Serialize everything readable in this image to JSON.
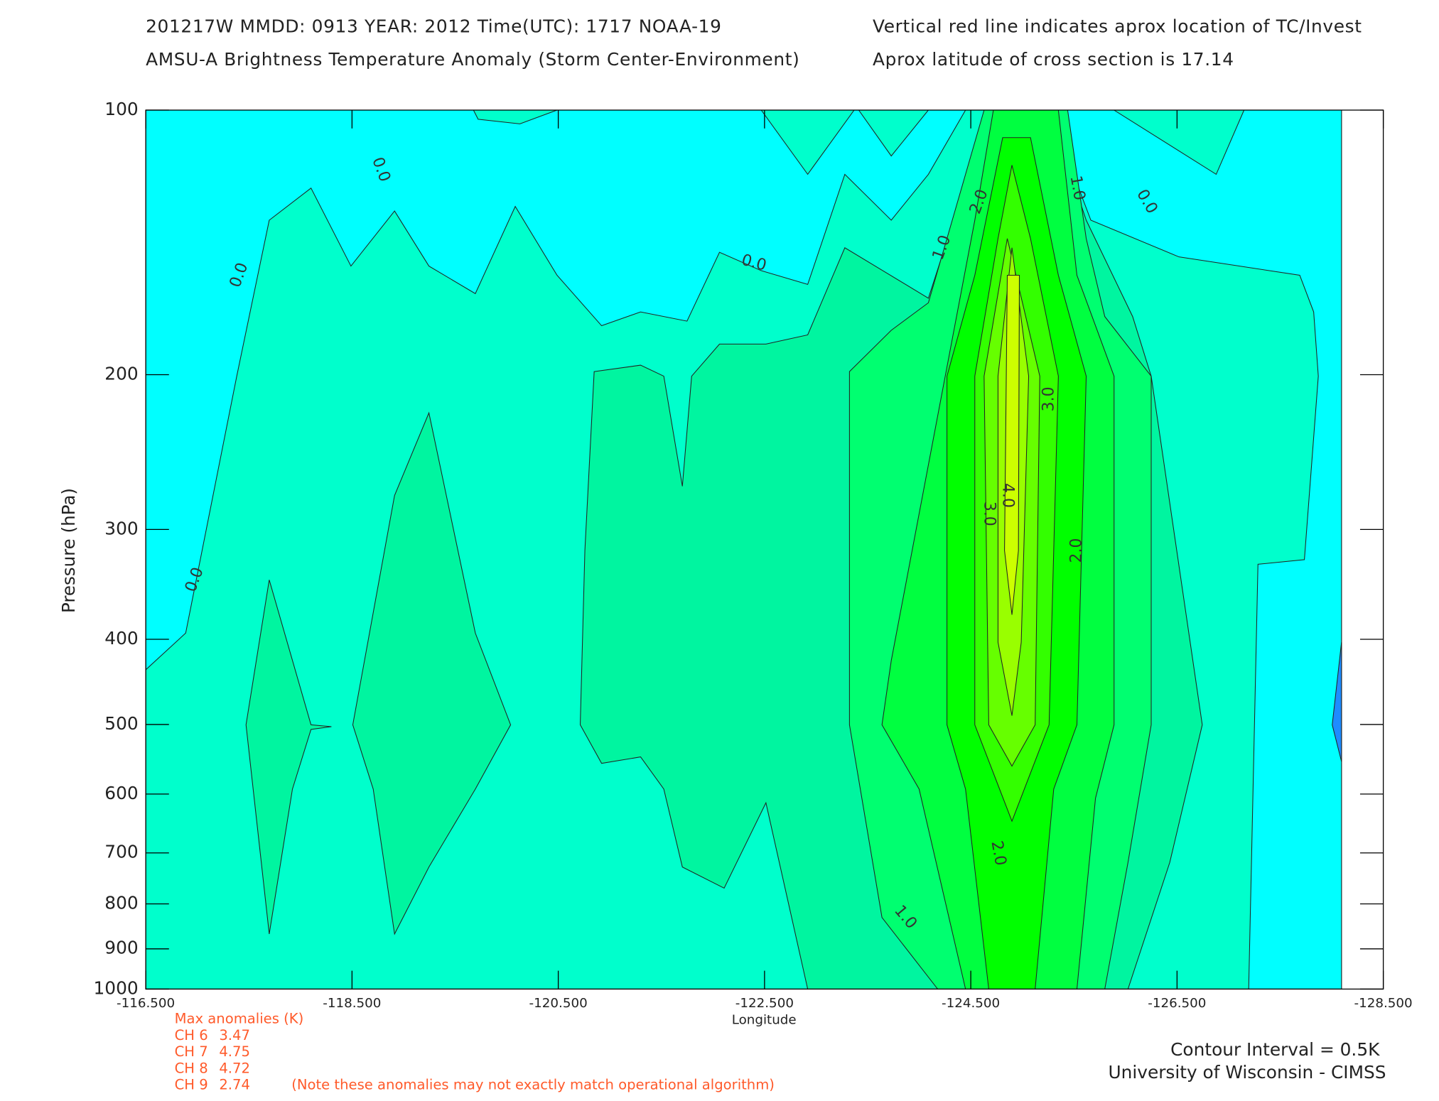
{
  "chart_data": {
    "type": "contour",
    "header": [
      "201217W  MMDD: 0913 YEAR: 2012 Time(UTC): 1717 NOAA-19",
      "AMSU-A Brightness Temperature Anomaly (Storm Center-Environment)",
      "Vertical red line indicates aprox location of TC/Invest",
      "Aprox latitude of cross section is 17.14"
    ],
    "xlabel": "Longitude",
    "ylabel": "Pressure (hPa)",
    "xlim": [
      -116.5,
      -128.5
    ],
    "xticks": [
      {
        "value": -116.5,
        "label": "-116.500"
      },
      {
        "value": -118.5,
        "label": "-118.500"
      },
      {
        "value": -120.5,
        "label": "-120.500"
      },
      {
        "value": -122.5,
        "label": "-122.500"
      },
      {
        "value": -124.5,
        "label": "-124.500"
      },
      {
        "value": -126.5,
        "label": "-126.500"
      },
      {
        "value": -128.5,
        "label": "-128.500"
      }
    ],
    "ylim": [
      1000,
      100
    ],
    "yticks": [
      100,
      200,
      300,
      400,
      500,
      600,
      700,
      800,
      900,
      1000
    ],
    "ylog": true,
    "levels": [
      -1,
      -0.5,
      0,
      0.5,
      1,
      1.5,
      2,
      2.5,
      3,
      3.5,
      4
    ],
    "colors": [
      "#1e8cff",
      "#00ffff",
      "#00ffcc",
      "#00f5a0",
      "#00ff70",
      "#00ff40",
      "#00ff00",
      "#33ff00",
      "#66ff00",
      "#99ff00",
      "#ccff00"
    ],
    "contour_labels": [
      "0.0",
      "0.0",
      "0.0",
      "0.0",
      "0.0",
      "1.0",
      "1.0",
      "1.0",
      "2.0",
      "2.0",
      "2.0",
      "3.0",
      "3.0",
      "4.0"
    ],
    "max_anomalies_title": "Max anomalies (K)",
    "max_anomalies": [
      {
        "channel": "CH 6",
        "value": 3.47
      },
      {
        "channel": "CH 7",
        "value": 4.75
      },
      {
        "channel": "CH 8",
        "value": 4.72
      },
      {
        "channel": "CH 9",
        "value": 2.74
      }
    ],
    "note": "(Note these anomalies may not exactly match operational algorithm)",
    "contour_interval": "Contour Interval = 0.5K",
    "credit": "University of Wisconsin - CIMSS"
  }
}
